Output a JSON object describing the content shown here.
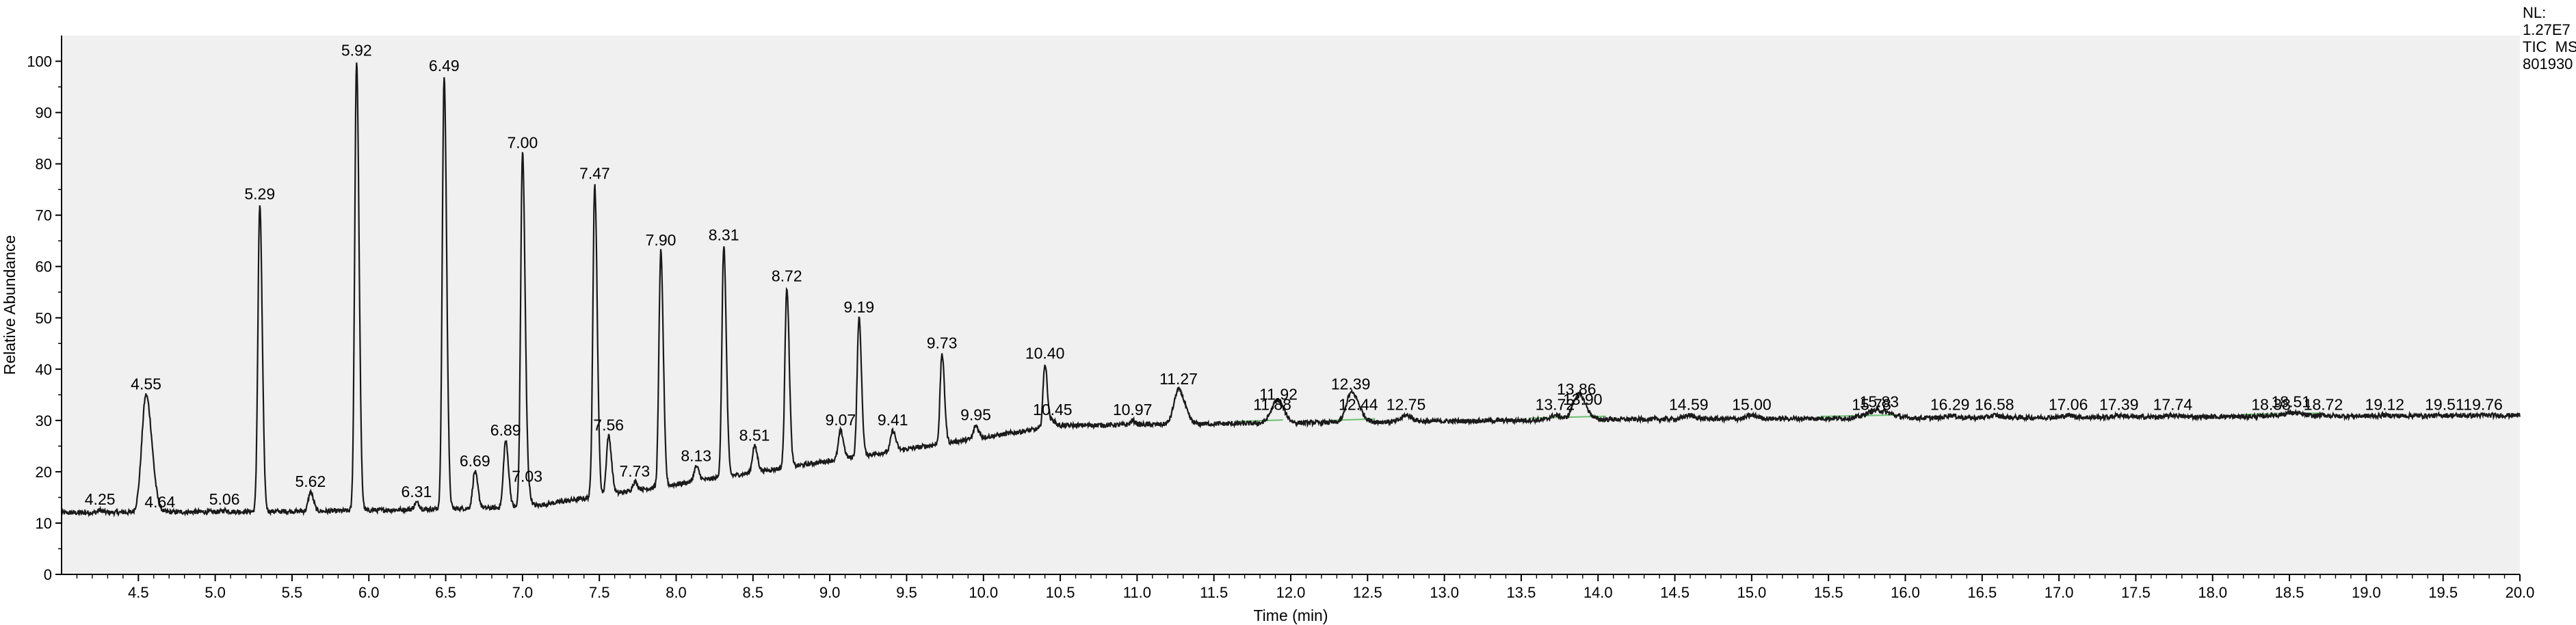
{
  "chart_data": {
    "type": "line",
    "xlabel": "Time (min)",
    "ylabel": "Relative Abundance",
    "xlim": [
      4.0,
      20.0
    ],
    "ylim": [
      0,
      105
    ],
    "x_ticks": [
      "4.5",
      "5.0",
      "5.5",
      "6.0",
      "6.5",
      "7.0",
      "7.5",
      "8.0",
      "8.5",
      "9.0",
      "9.5",
      "10.0",
      "10.5",
      "11.0",
      "11.5",
      "12.0",
      "12.5",
      "13.0",
      "13.5",
      "14.0",
      "14.5",
      "15.0",
      "15.5",
      "16.0",
      "16.5",
      "17.0",
      "17.5",
      "18.0",
      "18.5",
      "19.0",
      "19.5",
      "20.0"
    ],
    "y_ticks": [
      "0",
      "10",
      "20",
      "30",
      "40",
      "50",
      "60",
      "70",
      "80",
      "90",
      "100"
    ],
    "grid": false,
    "header": [
      "NL:",
      "1.27E7",
      "TIC  MS",
      "801930"
    ],
    "peaks": [
      {
        "rt": 4.25,
        "label": "4.25",
        "y": 12.5
      },
      {
        "rt": 4.55,
        "label": "4.55",
        "y": 35
      },
      {
        "rt": 4.64,
        "label": "4.64",
        "y": 12
      },
      {
        "rt": 5.06,
        "label": "5.06",
        "y": 12.5
      },
      {
        "rt": 5.29,
        "label": "5.29",
        "y": 72
      },
      {
        "rt": 5.62,
        "label": "5.62",
        "y": 16
      },
      {
        "rt": 5.92,
        "label": "5.92",
        "y": 100
      },
      {
        "rt": 6.31,
        "label": "6.31",
        "y": 14
      },
      {
        "rt": 6.49,
        "label": "6.49",
        "y": 97
      },
      {
        "rt": 6.69,
        "label": "6.69",
        "y": 20
      },
      {
        "rt": 6.89,
        "label": "6.89",
        "y": 26
      },
      {
        "rt": 7.0,
        "label": "7.00",
        "y": 82
      },
      {
        "rt": 7.03,
        "label": "7.03",
        "y": 17
      },
      {
        "rt": 7.47,
        "label": "7.47",
        "y": 76
      },
      {
        "rt": 7.56,
        "label": "7.56",
        "y": 27
      },
      {
        "rt": 7.73,
        "label": "7.73",
        "y": 18
      },
      {
        "rt": 7.9,
        "label": "7.90",
        "y": 63
      },
      {
        "rt": 8.13,
        "label": "8.13",
        "y": 21
      },
      {
        "rt": 8.31,
        "label": "8.31",
        "y": 64
      },
      {
        "rt": 8.51,
        "label": "8.51",
        "y": 25
      },
      {
        "rt": 8.72,
        "label": "8.72",
        "y": 56
      },
      {
        "rt": 9.07,
        "label": "9.07",
        "y": 28
      },
      {
        "rt": 9.19,
        "label": "9.19",
        "y": 50
      },
      {
        "rt": 9.41,
        "label": "9.41",
        "y": 28
      },
      {
        "rt": 9.73,
        "label": "9.73",
        "y": 43
      },
      {
        "rt": 9.95,
        "label": "9.95",
        "y": 29
      },
      {
        "rt": 10.4,
        "label": "10.40",
        "y": 41
      },
      {
        "rt": 10.45,
        "label": "10.45",
        "y": 30
      },
      {
        "rt": 10.97,
        "label": "10.97",
        "y": 30
      },
      {
        "rt": 11.27,
        "label": "11.27",
        "y": 36
      },
      {
        "rt": 11.88,
        "label": "11.88",
        "y": 31
      },
      {
        "rt": 11.92,
        "label": "11.92",
        "y": 33
      },
      {
        "rt": 12.39,
        "label": "12.39",
        "y": 35
      },
      {
        "rt": 12.44,
        "label": "12.44",
        "y": 31
      },
      {
        "rt": 12.75,
        "label": "12.75",
        "y": 31
      },
      {
        "rt": 13.72,
        "label": "13.72",
        "y": 31
      },
      {
        "rt": 13.86,
        "label": "13.86",
        "y": 34
      },
      {
        "rt": 13.9,
        "label": "13.90",
        "y": 32
      },
      {
        "rt": 14.59,
        "label": "14.59",
        "y": 31
      },
      {
        "rt": 15.0,
        "label": "15.00",
        "y": 31
      },
      {
        "rt": 15.78,
        "label": "15.78",
        "y": 31
      },
      {
        "rt": 15.83,
        "label": "15.83",
        "y": 31.5
      },
      {
        "rt": 16.29,
        "label": "16.29",
        "y": 31
      },
      {
        "rt": 16.58,
        "label": "16.58",
        "y": 31
      },
      {
        "rt": 17.06,
        "label": "17.06",
        "y": 31
      },
      {
        "rt": 17.39,
        "label": "17.39",
        "y": 31
      },
      {
        "rt": 17.74,
        "label": "17.74",
        "y": 31
      },
      {
        "rt": 18.38,
        "label": "18.38",
        "y": 31
      },
      {
        "rt": 18.51,
        "label": "18.51",
        "y": 31.5
      },
      {
        "rt": 18.72,
        "label": "18.72",
        "y": 31
      },
      {
        "rt": 19.12,
        "label": "19.12",
        "y": 31
      },
      {
        "rt": 19.51,
        "label": "19.51",
        "y": 31
      },
      {
        "rt": 19.76,
        "label": "19.76",
        "y": 31
      }
    ],
    "colors": {
      "plot_bg": "#f0f0f0",
      "trace": "#1a1a1a",
      "baseline": "#6cc070"
    }
  }
}
